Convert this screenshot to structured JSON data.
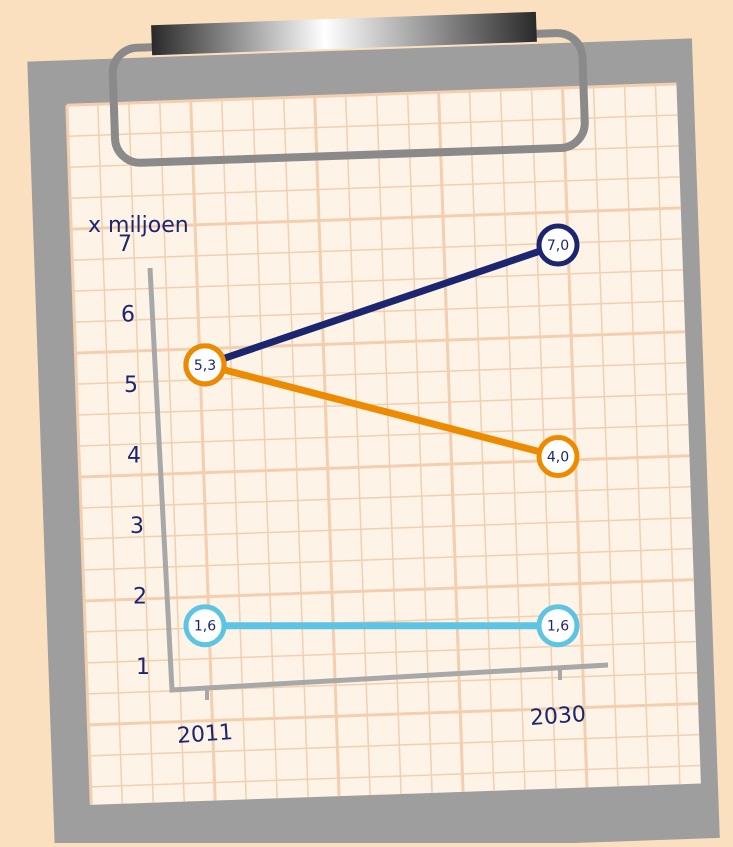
{
  "chart_data": {
    "type": "line",
    "y_label": "x miljoen",
    "categories": [
      "2011",
      "2030"
    ],
    "series": [
      {
        "color": "#1c2670",
        "values": [
          5.3,
          7.0
        ],
        "value_labels": [
          "5,3",
          "7,0"
        ]
      },
      {
        "color": "#ee8a00",
        "values": [
          5.3,
          4.0
        ],
        "value_labels": [
          "5,3",
          "4,0"
        ]
      },
      {
        "color": "#5ec4e3",
        "values": [
          1.6,
          1.6
        ],
        "value_labels": [
          "1,6",
          "1,6"
        ]
      }
    ],
    "ylim": [
      1,
      7
    ],
    "yticks": [
      1,
      2,
      3,
      4,
      5,
      6,
      7
    ],
    "axis_color": "#a8a8a8"
  }
}
